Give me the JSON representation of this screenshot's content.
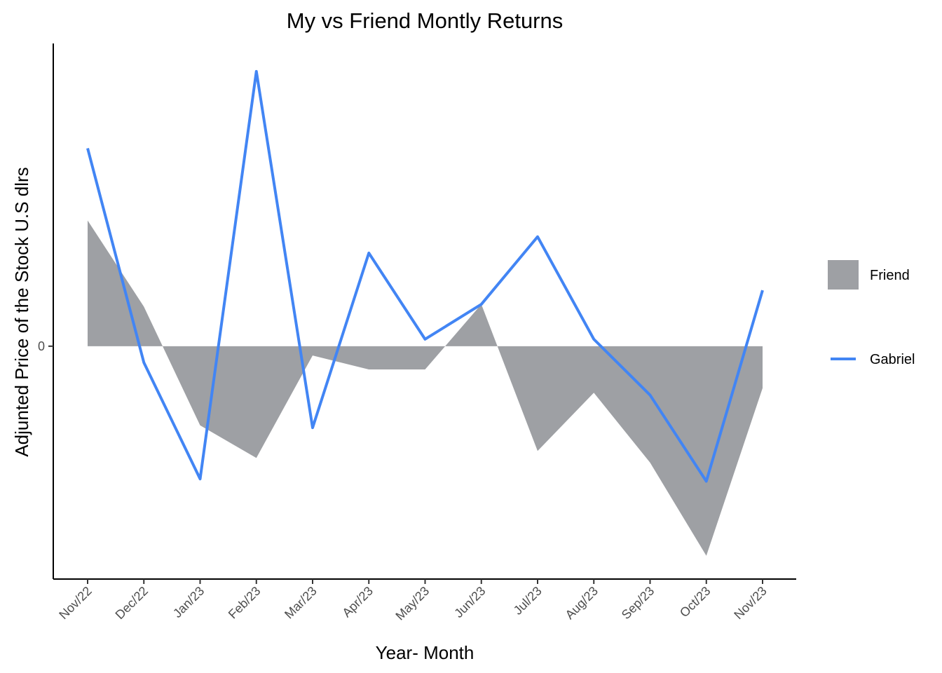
{
  "chart_data": {
    "type": "line",
    "title": "My vs Friend Montly Returns",
    "xlabel": "Year- Month",
    "ylabel": "Adjunted Price of the Stock U.S dlrs",
    "categories": [
      "Nov/22",
      "Dec/22",
      "Jan/23",
      "Feb/23",
      "Mar/23",
      "Apr/23",
      "May/23",
      "Jun/23",
      "Jul/23",
      "Aug/23",
      "Sep/23",
      "Oct/23",
      "Nov/23"
    ],
    "y_ticks": [
      0
    ],
    "y_tick_labels": [
      "0"
    ],
    "ylim": [
      -1.0,
      1.3
    ],
    "series": [
      {
        "name": "Friend",
        "kind": "area",
        "color": "#9ea0a4",
        "values": [
          0.54,
          0.17,
          -0.34,
          -0.48,
          -0.04,
          -0.1,
          -0.1,
          0.18,
          -0.45,
          -0.2,
          -0.5,
          -0.9,
          -0.18
        ]
      },
      {
        "name": "Gabriel",
        "kind": "line",
        "color": "#4285f4",
        "values": [
          0.85,
          -0.07,
          -0.57,
          1.18,
          -0.35,
          0.4,
          0.03,
          0.18,
          0.47,
          0.03,
          -0.21,
          -0.58,
          0.24
        ]
      }
    ],
    "legend_position": "right",
    "grid": false
  }
}
